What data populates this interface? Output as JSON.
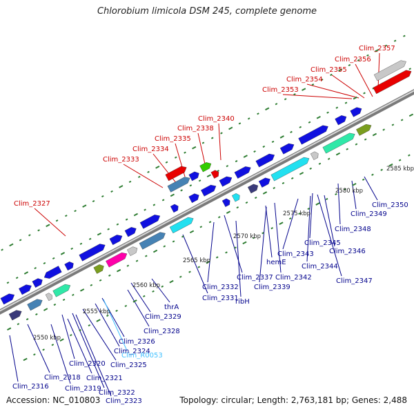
{
  "title": "Chlorobium limicola DSM 245, complete genome",
  "accession": "Accession: NC_010803",
  "topology": "Topology: circular; Length: 2,763,181 bp; Genes: 2,488",
  "colors": {
    "backbone_dark": "#7a7a7a",
    "backbone_light": "#d8d8d8",
    "gene_blue": "#1010e0",
    "gene_red": "#e80000",
    "gene_steel": "#4682b4",
    "gene_cyan": "#22e0f0",
    "gene_aqua": "#30e8a8",
    "gene_olive": "#7a9e1e",
    "gene_green": "#33cc00",
    "gene_magenta": "#ff00aa",
    "gene_navy": "#3a3a7a",
    "gene_gray": "#c8c8c8",
    "tick_green": "#2e7d32",
    "label_blue": "#00008b",
    "label_red": "#cc0000",
    "label_cyan": "#40c0ff"
  },
  "scale": [
    "2550 kbp",
    "2555 kbp",
    "2560 kbp",
    "2565 kbp",
    "2570 kbp",
    "2575 kbp",
    "2580 kbp",
    "2585 kbp"
  ],
  "labels_red": [
    "Clim_2357",
    "Clim_2356",
    "Clim_2355",
    "Clim_2354",
    "Clim_2353",
    "Clim_2340",
    "Clim_2338",
    "Clim_2335",
    "Clim_2334",
    "Clim_2333",
    "Clim_2327"
  ],
  "labels_blue": [
    "Clim_2350",
    "Clim_2349",
    "Clim_2348",
    "Clim_2347",
    "Clim_2346",
    "Clim_2345",
    "Clim_2344",
    "Clim_2343",
    "Clim_2342",
    "Clim_2339",
    "hemE",
    "Clim_2337",
    "ribH",
    "Clim_2332",
    "Clim_2331",
    "thrA",
    "Clim_2329",
    "Clim_2328",
    "Clim_2326",
    "Clim_2324",
    "Clim_2325",
    "Clim_2320",
    "Clim_2321",
    "Clim_2318",
    "Clim_2319",
    "Clim_2322",
    "Clim_2323",
    "Clim_2316"
  ],
  "labels_cyan": [
    "Clim_R0053"
  ]
}
